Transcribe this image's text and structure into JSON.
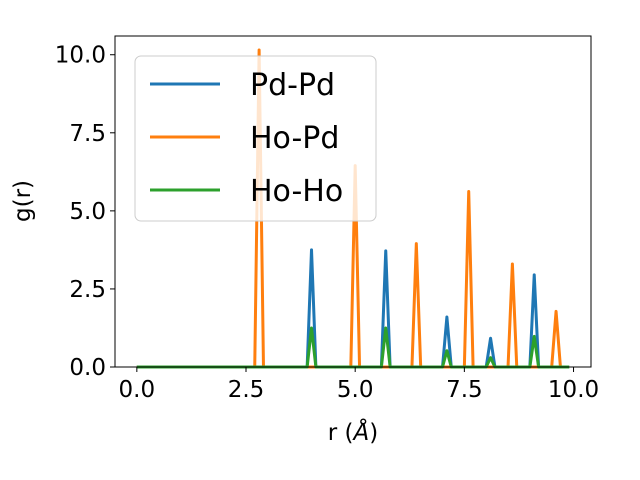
{
  "chart_data": {
    "type": "line",
    "xlabel_main": "r (",
    "xlabel_unit": "Å",
    "xlabel_close": ")",
    "ylabel": "g(r)",
    "xlim": [
      -0.5,
      10.4
    ],
    "ylim": [
      0,
      10.6
    ],
    "xticks": [
      0.0,
      2.5,
      5.0,
      7.5,
      10.0
    ],
    "xtick_labels": [
      "0.0",
      "2.5",
      "5.0",
      "7.5",
      "10.0"
    ],
    "yticks": [
      0.0,
      2.5,
      5.0,
      7.5,
      10.0
    ],
    "ytick_labels": [
      "0.0",
      "2.5",
      "5.0",
      "7.5",
      "10.0"
    ],
    "grid": false,
    "legend_position": "top-left",
    "x_range": [
      0.0,
      9.9
    ],
    "series": [
      {
        "name": "Pd-Pd",
        "color": "#1f77b4",
        "peaks": [
          {
            "r": 4.0,
            "g": 3.75
          },
          {
            "r": 5.7,
            "g": 3.72
          },
          {
            "r": 7.1,
            "g": 1.6
          },
          {
            "r": 8.1,
            "g": 0.92
          },
          {
            "r": 9.1,
            "g": 2.95
          }
        ]
      },
      {
        "name": "Ho-Pd",
        "color": "#ff7f0e",
        "peaks": [
          {
            "r": 2.8,
            "g": 10.15
          },
          {
            "r": 5.0,
            "g": 6.45
          },
          {
            "r": 6.4,
            "g": 3.95
          },
          {
            "r": 7.6,
            "g": 5.62
          },
          {
            "r": 8.6,
            "g": 3.3
          },
          {
            "r": 9.6,
            "g": 1.78
          }
        ]
      },
      {
        "name": "Ho-Ho",
        "color": "#2ca02c",
        "peaks": [
          {
            "r": 4.0,
            "g": 1.25
          },
          {
            "r": 5.7,
            "g": 1.25
          },
          {
            "r": 7.1,
            "g": 0.52
          },
          {
            "r": 8.1,
            "g": 0.3
          },
          {
            "r": 9.1,
            "g": 0.98
          }
        ]
      }
    ]
  }
}
